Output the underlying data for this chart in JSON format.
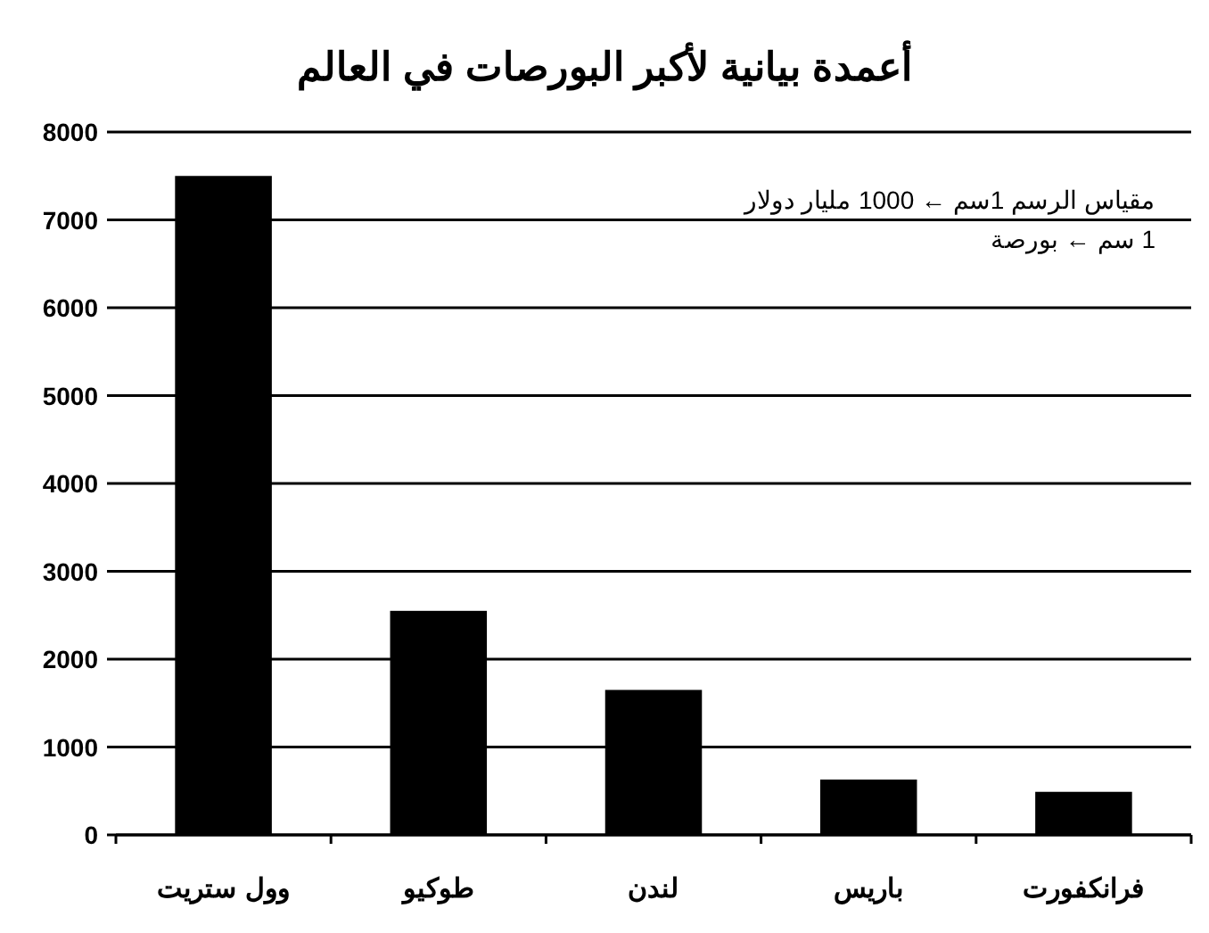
{
  "chart_data": {
    "type": "bar",
    "title": "أعمدة بيانية لأكبر البورصات في العالم",
    "categories": [
      "وول ستريت",
      "طوكيو",
      "لندن",
      "باريس",
      "فرانكفورت"
    ],
    "values": [
      7500,
      2550,
      1650,
      630,
      490
    ],
    "color": "#000000",
    "ylim": [
      0,
      8000
    ],
    "yticks": [
      0,
      1000,
      2000,
      3000,
      4000,
      5000,
      6000,
      7000,
      8000
    ],
    "grid": "y",
    "annotations": [
      "مقياس الرسم 1سم ← 1000 مليار دولار",
      "1 سم ← بورصة"
    ]
  }
}
